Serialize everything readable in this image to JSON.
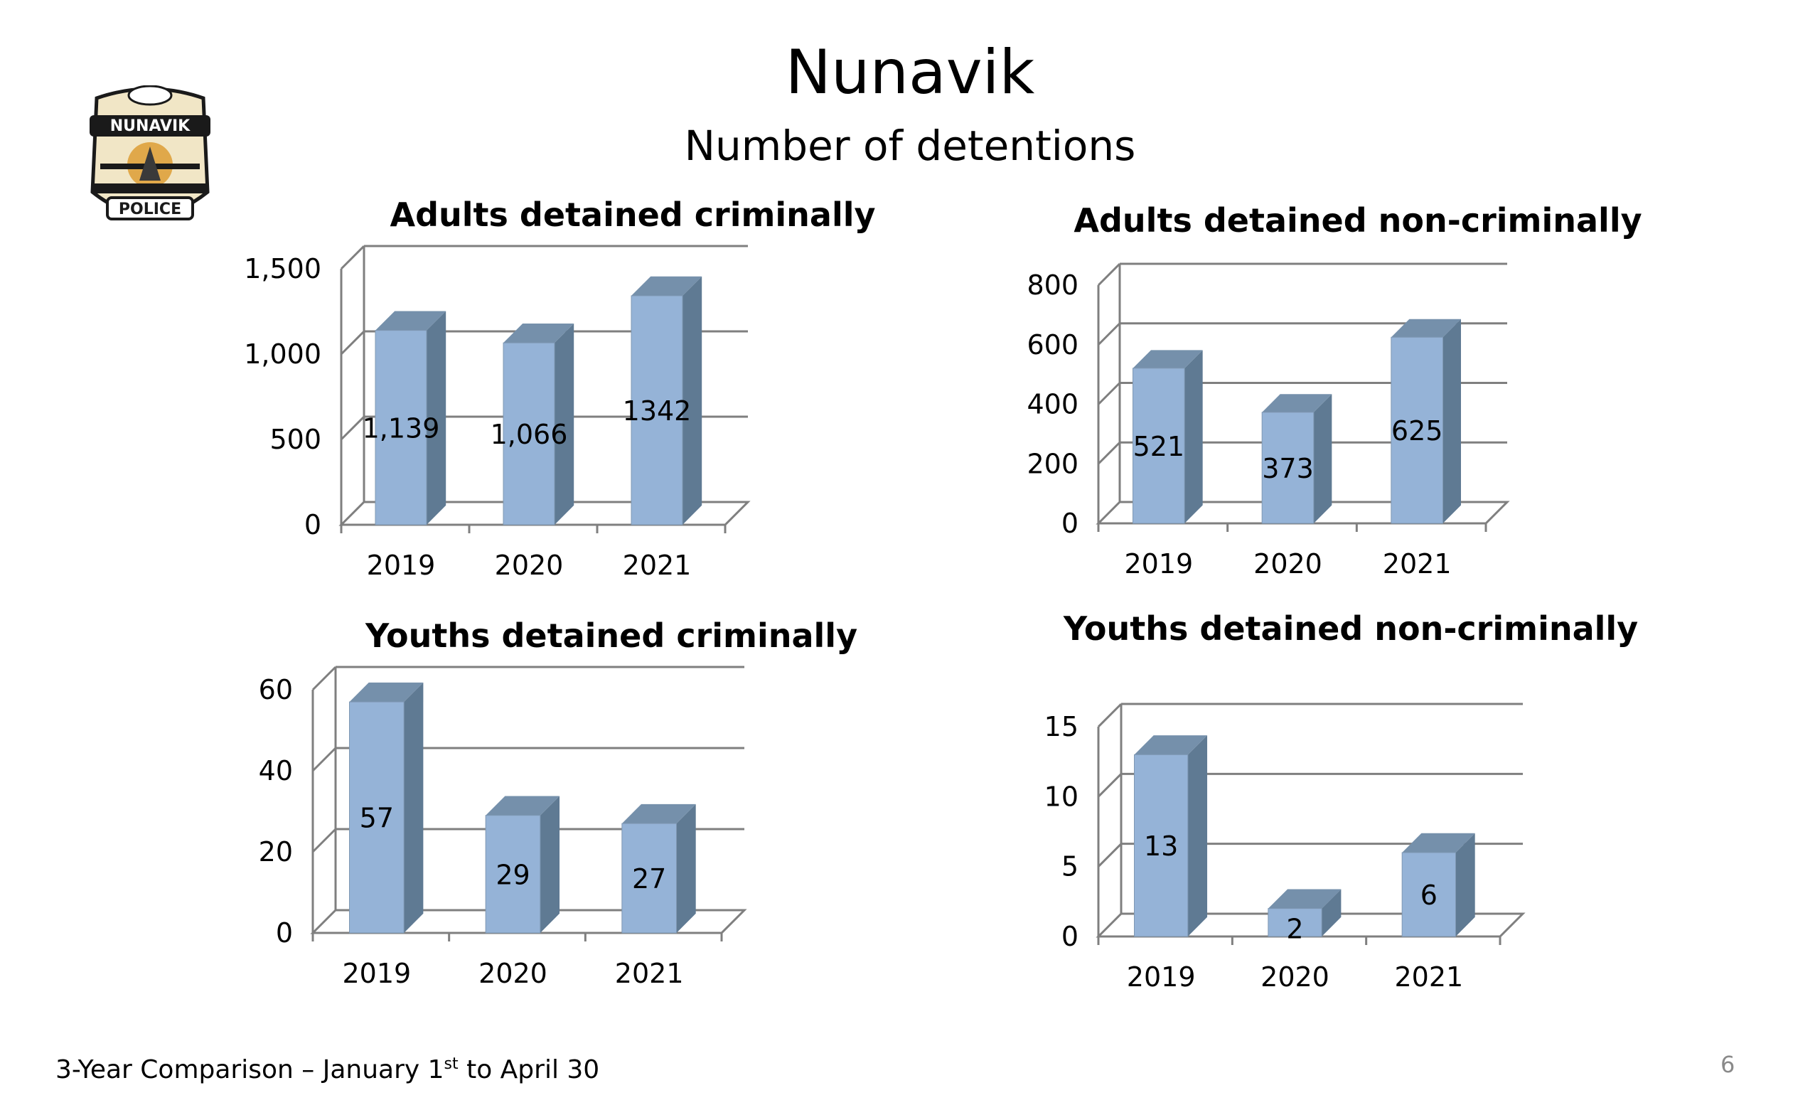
{
  "title": "Nunavik",
  "subtitle": "Number of detentions",
  "logo": {
    "text_top": "NUNAVIK",
    "text_bottom": "POLICE"
  },
  "footer": {
    "before_sup": "3-Year Comparison – January 1",
    "sup": "st",
    "after_sup": " to April 30"
  },
  "page_number": "6",
  "colors": {
    "bar_front": "#95b3d7",
    "bar_side": "#5f7a93",
    "bar_top": "#7590ab",
    "grid": "#7f7f7f"
  },
  "chart_data": [
    {
      "type": "bar",
      "title": "Adults detained criminally",
      "categories": [
        "2019",
        "2020",
        "2021"
      ],
      "values": [
        1139,
        1066,
        1342
      ],
      "data_labels": [
        "1,139",
        "1,066",
        "1342"
      ],
      "y_ticks": [
        "0",
        "500",
        "1,000",
        "1,500"
      ],
      "ylim": [
        0,
        1500
      ],
      "grid": true
    },
    {
      "type": "bar",
      "title": "Adults detained non-criminally",
      "categories": [
        "2019",
        "2020",
        "2021"
      ],
      "values": [
        521,
        373,
        625
      ],
      "data_labels": [
        "521",
        "373",
        "625"
      ],
      "y_ticks": [
        "0",
        "200",
        "400",
        "600",
        "800"
      ],
      "ylim": [
        0,
        800
      ],
      "grid": true
    },
    {
      "type": "bar",
      "title": "Youths detained criminally",
      "categories": [
        "2019",
        "2020",
        "2021"
      ],
      "values": [
        57,
        29,
        27
      ],
      "data_labels": [
        "57",
        "29",
        "27"
      ],
      "y_ticks": [
        "0",
        "20",
        "40",
        "60"
      ],
      "ylim": [
        0,
        60
      ],
      "grid": true
    },
    {
      "type": "bar",
      "title": "Youths detained non-criminally",
      "categories": [
        "2019",
        "2020",
        "2021"
      ],
      "values": [
        13,
        2,
        6
      ],
      "data_labels": [
        "13",
        "2",
        "6"
      ],
      "y_ticks": [
        "0",
        "5",
        "10",
        "15"
      ],
      "ylim": [
        0,
        15
      ],
      "grid": true
    }
  ]
}
